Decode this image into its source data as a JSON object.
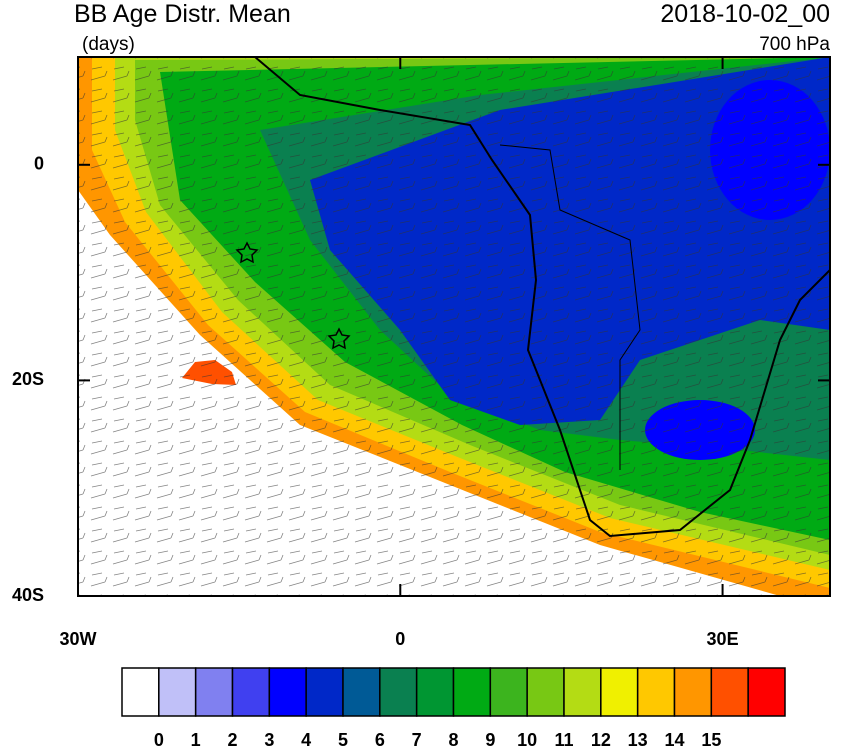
{
  "title": "BB Age Distr. Mean",
  "units": "(days)",
  "date": "2018-10-02_00",
  "level": "700 hPa",
  "map": {
    "xlim": [
      -30,
      40
    ],
    "ylim": [
      -40,
      10
    ],
    "xticks": [
      {
        "value": -30,
        "label": "30W"
      },
      0,
      {
        "value": 30,
        "label": "30E"
      }
    ],
    "yticks": [
      0,
      {
        "value": -20,
        "label": "20S"
      },
      {
        "value": -40,
        "label": "40S"
      }
    ]
  },
  "colorbar": {
    "colors": [
      "#ffffff",
      "#c0c0f8",
      "#8080f0",
      "#4040f0",
      "#0000ff",
      "#0028c8",
      "#005a96",
      "#0a8050",
      "#009632",
      "#00aa14",
      "#3cb41e",
      "#78c814",
      "#b4dc14",
      "#f0f000",
      "#ffc800",
      "#ff9600",
      "#ff5000",
      "#ff0000"
    ],
    "labels": [
      0,
      1,
      2,
      3,
      4,
      5,
      6,
      7,
      8,
      9,
      10,
      11,
      12,
      13,
      14,
      15
    ]
  }
}
